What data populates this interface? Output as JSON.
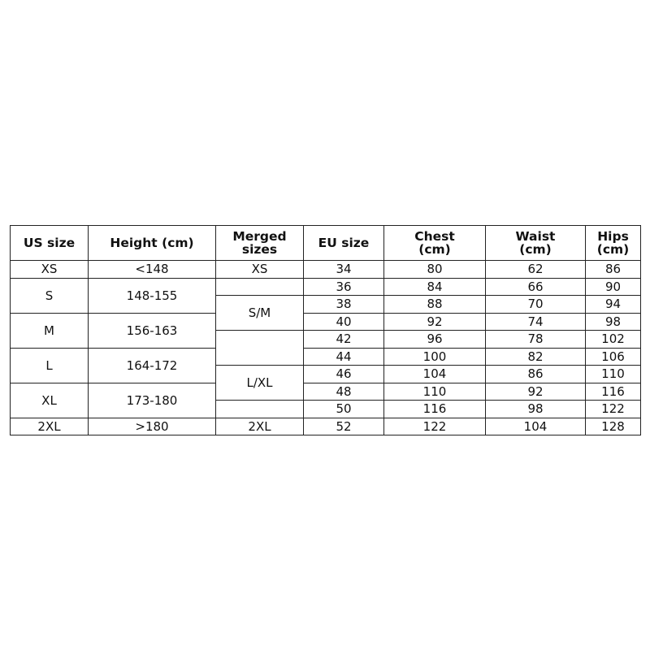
{
  "headers": [
    "US size",
    "Height (cm)",
    "Merged\nsizes",
    "EU size",
    "Chest\n(cm)",
    "Waist\n(cm)",
    "Hips\n(cm)"
  ],
  "us_sizes": [
    {
      "size": "XS",
      "height": "<148"
    },
    {
      "size": "S",
      "height": "148-155"
    },
    {
      "size": "M",
      "height": "156-163"
    },
    {
      "size": "L",
      "height": "164-172"
    },
    {
      "size": "XL",
      "height": "173-180"
    },
    {
      "size": "2XL",
      "height": ">180"
    }
  ],
  "merged": [
    "XS",
    "",
    "S/M",
    "",
    "L/XL",
    "",
    "2XL"
  ],
  "rows": [
    {
      "eu": "34",
      "chest": "80",
      "waist": "62",
      "hips": "86"
    },
    {
      "eu": "36",
      "chest": "84",
      "waist": "66",
      "hips": "90"
    },
    {
      "eu": "38",
      "chest": "88",
      "waist": "70",
      "hips": "94"
    },
    {
      "eu": "40",
      "chest": "92",
      "waist": "74",
      "hips": "98"
    },
    {
      "eu": "42",
      "chest": "96",
      "waist": "78",
      "hips": "102"
    },
    {
      "eu": "44",
      "chest": "100",
      "waist": "82",
      "hips": "106"
    },
    {
      "eu": "46",
      "chest": "104",
      "waist": "86",
      "hips": "110"
    },
    {
      "eu": "48",
      "chest": "110",
      "waist": "92",
      "hips": "116"
    },
    {
      "eu": "50",
      "chest": "116",
      "waist": "98",
      "hips": "122"
    },
    {
      "eu": "52",
      "chest": "122",
      "waist": "104",
      "hips": "128"
    }
  ]
}
